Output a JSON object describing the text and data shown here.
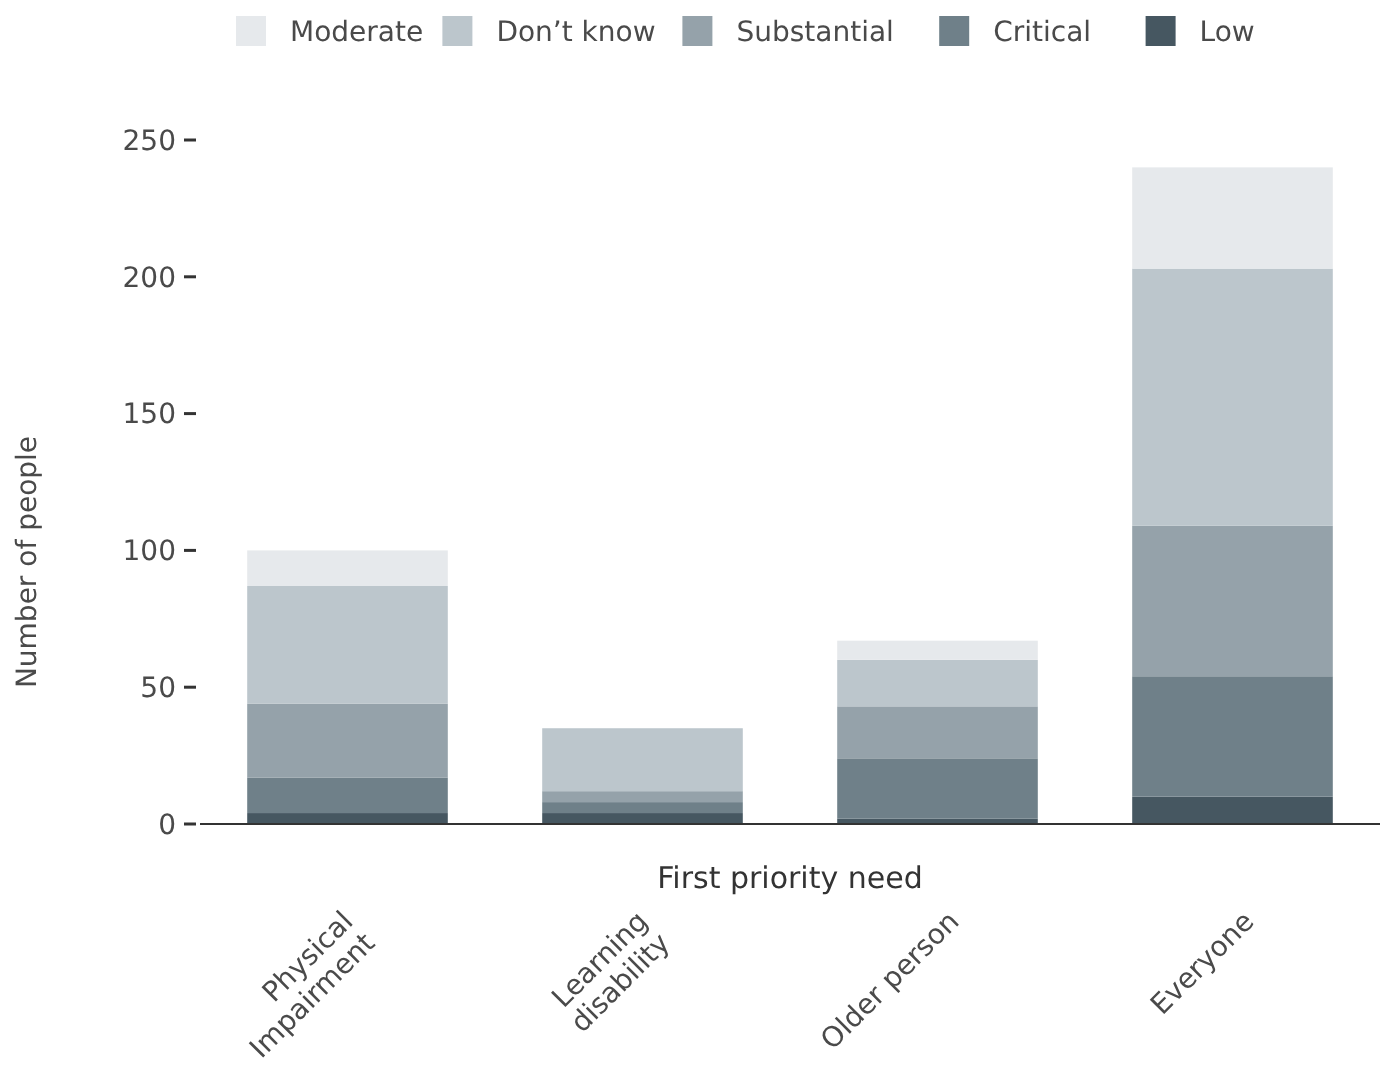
{
  "chart_data": {
    "type": "bar",
    "stacked": true,
    "xlabel": "First priority need",
    "ylabel": "Number of people",
    "categories": [
      "Physical Impairment",
      "Learning disability",
      "Older person",
      "Everyone"
    ],
    "series": [
      {
        "name": "Low",
        "color": "#465761",
        "values": [
          4,
          4,
          2,
          10
        ]
      },
      {
        "name": "Critical",
        "color": "#6f8089",
        "values": [
          13,
          4,
          22,
          44
        ]
      },
      {
        "name": "Substantial",
        "color": "#95a2aa",
        "values": [
          27,
          4,
          19,
          55
        ]
      },
      {
        "name": "Don’t know",
        "color": "#bcc6cc",
        "values": [
          43,
          23,
          17,
          94
        ]
      },
      {
        "name": "Moderate",
        "color": "#e6e9ec",
        "values": [
          13,
          0,
          7,
          37
        ]
      }
    ],
    "ylim": [
      0,
      250
    ],
    "yticks": [
      0,
      50,
      100,
      150,
      200,
      250
    ],
    "grid": false,
    "legend": "top"
  }
}
